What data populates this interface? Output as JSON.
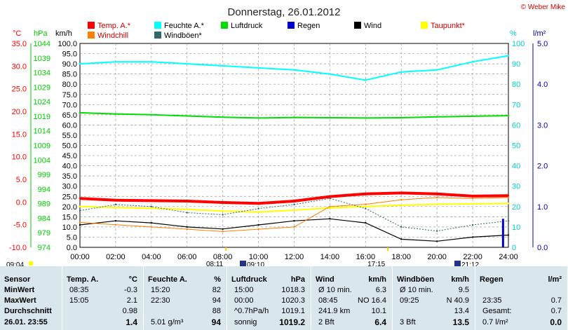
{
  "title": "Donnerstag, 26.01.2012",
  "copyright": "© Weber Mike",
  "colors": {
    "temp": "#ff0000",
    "humidity": "#00ffff",
    "pressure": "#00dd00",
    "rain": "#0000cc",
    "wind": "#000000",
    "dewpoint": "#ffff00",
    "windchill": "#ff7f00",
    "gust": "#336666",
    "axis_temp": "#ff0000",
    "axis_pressure": "#00cc00",
    "axis_humidity": "#00cccc",
    "axis_rain": "#0000aa",
    "table_bg": "#d9e6ec"
  },
  "legend": [
    "Temp. A.*",
    "Feuchte A.*",
    "Luftdruck",
    "Regen",
    "Wind",
    "Taupunkt*",
    "Windchill",
    "Windböen*"
  ],
  "axis_units": {
    "temp": "°C",
    "pressure": "hPa",
    "wind": "km/h",
    "humidity": "%",
    "rain": "l/m²"
  },
  "events": {
    "start": "09:04",
    "sunrise": "08:11",
    "moonrise": "09:10",
    "sunset": "17:15",
    "moonset": "21:12"
  },
  "chart_data": {
    "type": "line",
    "title": "Donnerstag, 26.01.2012",
    "x_ticks": [
      "00:00",
      "02:00",
      "04:00",
      "06:00",
      "08:00",
      "10:00",
      "12:00",
      "14:00",
      "16:00",
      "18:00",
      "20:00",
      "22:00",
      "24:00"
    ],
    "temp_ticks": [
      "35.0",
      "30.0",
      "25.0",
      "20.0",
      "15.0",
      "10.0",
      "5.0",
      "0.0",
      "-5.0",
      "-10.0"
    ],
    "pressure_ticks": [
      "1044",
      "1039",
      "1034",
      "1029",
      "1024",
      "1019",
      "1014",
      "1009",
      "1004",
      "999",
      "994",
      "989",
      "984",
      "979",
      "974"
    ],
    "wind_ticks": [
      "100.0",
      "95.0",
      "90.0",
      "85.0",
      "80.0",
      "75.0",
      "70.0",
      "65.0",
      "60.0",
      "55.0",
      "50.0",
      "45.0",
      "40.0",
      "35.0",
      "30.0",
      "25.0",
      "20.0",
      "15.0",
      "10.0",
      "5.0",
      "0.0"
    ],
    "humidity_ticks": [
      "100",
      "90",
      "80",
      "70",
      "60",
      "50",
      "40",
      "30",
      "20",
      "10",
      "0"
    ],
    "rain_ticks": [
      "5.0",
      "4.0",
      "3.0",
      "2.0",
      "1.0",
      "0.0"
    ],
    "ranges": {
      "temp": [
        -10,
        35
      ],
      "pressure": [
        974,
        1044
      ],
      "wind": [
        0,
        100
      ],
      "humidity": [
        0,
        100
      ],
      "rain": [
        0,
        5
      ]
    },
    "x": [
      0,
      2,
      4,
      6,
      8,
      10,
      12,
      14,
      16,
      18,
      20,
      22,
      24
    ],
    "series": [
      {
        "name": "Temp. A.*",
        "axis": "temp",
        "values": [
          0.8,
          0.4,
          0.3,
          0.2,
          -0.1,
          -0.3,
          0.2,
          1.2,
          1.8,
          2.0,
          1.8,
          1.3,
          1.4
        ]
      },
      {
        "name": "Feuchte A.*",
        "axis": "humidity",
        "values": [
          90,
          91,
          91,
          90,
          89,
          88,
          87,
          85,
          82,
          86,
          87,
          91,
          94
        ]
      },
      {
        "name": "Luftdruck",
        "axis": "pressure",
        "values": [
          1020.2,
          1019.8,
          1019.5,
          1019.1,
          1018.7,
          1018.4,
          1018.6,
          1018.5,
          1018.4,
          1018.5,
          1018.8,
          1019.0,
          1019.2
        ]
      },
      {
        "name": "Taupunkt*",
        "axis": "temp",
        "values": [
          -1.0,
          -1.2,
          -1.4,
          -1.6,
          -2.0,
          -2.2,
          -1.8,
          -1.3,
          -1.0,
          -0.7,
          -0.5,
          -0.4,
          -0.3
        ]
      },
      {
        "name": "Wind",
        "axis": "wind",
        "values": [
          11,
          13,
          12,
          10,
          9,
          11,
          13,
          14,
          12,
          4,
          3,
          5,
          6
        ]
      },
      {
        "name": "Windböen*",
        "axis": "wind",
        "values": [
          18,
          21,
          20,
          17,
          16,
          19,
          21,
          24,
          19,
          10,
          8,
          11,
          13
        ]
      },
      {
        "name": "Windchill",
        "axis": "temp",
        "values": [
          -4.5,
          -5.0,
          -5.5,
          -6.0,
          -6.5,
          -6.0,
          -5.5,
          -1.0,
          -0.5,
          0.5,
          1.0,
          0.8,
          1.0
        ]
      }
    ],
    "rain_bar": {
      "x": 23.7,
      "value": 0.7
    }
  },
  "table": {
    "columns": [
      {
        "header": "Sensor",
        "rows": [
          "MinWert",
          "MaxWert",
          "Durchschnitt",
          "26.01. 23:55"
        ]
      },
      {
        "header": "Temp. A.",
        "unit": "°C",
        "rows": [
          [
            "08:35",
            "-0.3"
          ],
          [
            "15:05",
            "2.1"
          ],
          [
            "",
            "0.98"
          ],
          [
            "",
            "1.4"
          ]
        ]
      },
      {
        "header": "Feuchte A.",
        "unit": "%",
        "rows": [
          [
            "15:20",
            "82"
          ],
          [
            "22:30",
            "94"
          ],
          [
            "",
            "88"
          ],
          [
            "5.01 g/m³",
            "94"
          ]
        ]
      },
      {
        "header": "Luftdruck",
        "unit": "hPa",
        "rows": [
          [
            "15:00",
            "1018.3"
          ],
          [
            "00:00",
            "1020.3"
          ],
          [
            "^0.7hPa/h",
            "1019.1"
          ],
          [
            "sonnig",
            "1019.2"
          ]
        ]
      },
      {
        "header": "Wind",
        "unit": "km/h",
        "rows": [
          [
            "Ø 10 min.",
            "6.3"
          ],
          [
            "08:45",
            "NO 16.4"
          ],
          [
            "241.9 km",
            "10.1"
          ],
          [
            "2 Bft",
            "6.4"
          ]
        ]
      },
      {
        "header": "Windböen",
        "unit": "km/h",
        "rows": [
          [
            "Ø 10 min.",
            "9.5"
          ],
          [
            "09:25",
            "N 40.9"
          ],
          [
            "",
            "13.4"
          ],
          [
            "3 Bft",
            "13.5"
          ]
        ]
      },
      {
        "header": "Regen",
        "unit": "l/m²",
        "rows": [
          [
            "",
            ""
          ],
          [
            "23:35",
            "0.7"
          ],
          [
            "Gesamt:",
            "0.7"
          ],
          [
            "0.7 l/m²",
            "0.0"
          ]
        ]
      }
    ]
  }
}
